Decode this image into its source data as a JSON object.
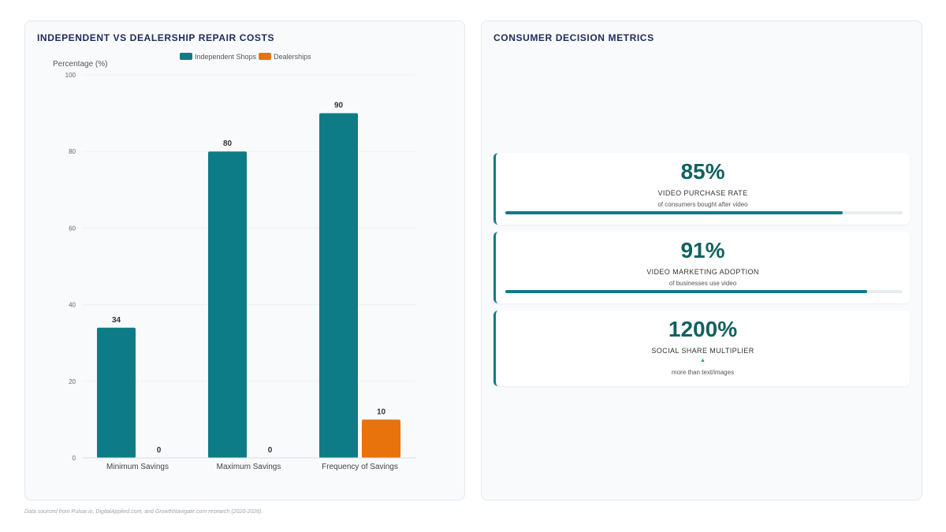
{
  "left_panel": {
    "title": "INDEPENDENT VS DEALERSHIP REPAIR COSTS"
  },
  "right_panel": {
    "title": "CONSUMER DECISION METRICS"
  },
  "chart_data": {
    "type": "bar",
    "title": "INDEPENDENT VS DEALERSHIP REPAIR COSTS",
    "ylabel": "Percentage (%)",
    "xlabel": "",
    "ylim": [
      0,
      100
    ],
    "yticks": [
      0,
      20,
      40,
      60,
      80,
      100
    ],
    "categories": [
      "Minimum Savings",
      "Maximum Savings",
      "Frequency of Savings"
    ],
    "series": [
      {
        "name": "Independent Shops",
        "color": "#0e7c86",
        "values": [
          34,
          80,
          90
        ]
      },
      {
        "name": "Dealerships",
        "color": "#e8720c",
        "values": [
          0,
          0,
          10
        ]
      }
    ],
    "legend_position": "top-center",
    "grid": true
  },
  "metrics": [
    {
      "value": "85%",
      "label": "VIDEO PURCHASE RATE",
      "sub": "of consumers bought after video",
      "progress": 0.85
    },
    {
      "value": "91%",
      "label": "VIDEO MARKETING ADOPTION",
      "sub": "of businesses use video",
      "progress": 0.91
    },
    {
      "value": "1200%",
      "label": "SOCIAL SHARE MULTIPLIER",
      "sub": "more than text/images",
      "icon": "triangle-up-icon",
      "trend_color": "#10a37f"
    }
  ],
  "footer": {
    "source": "Data sourced from Pulsar.io, DigitalApplied.com, and GrowthNavigate.com research (2020-2026)."
  }
}
